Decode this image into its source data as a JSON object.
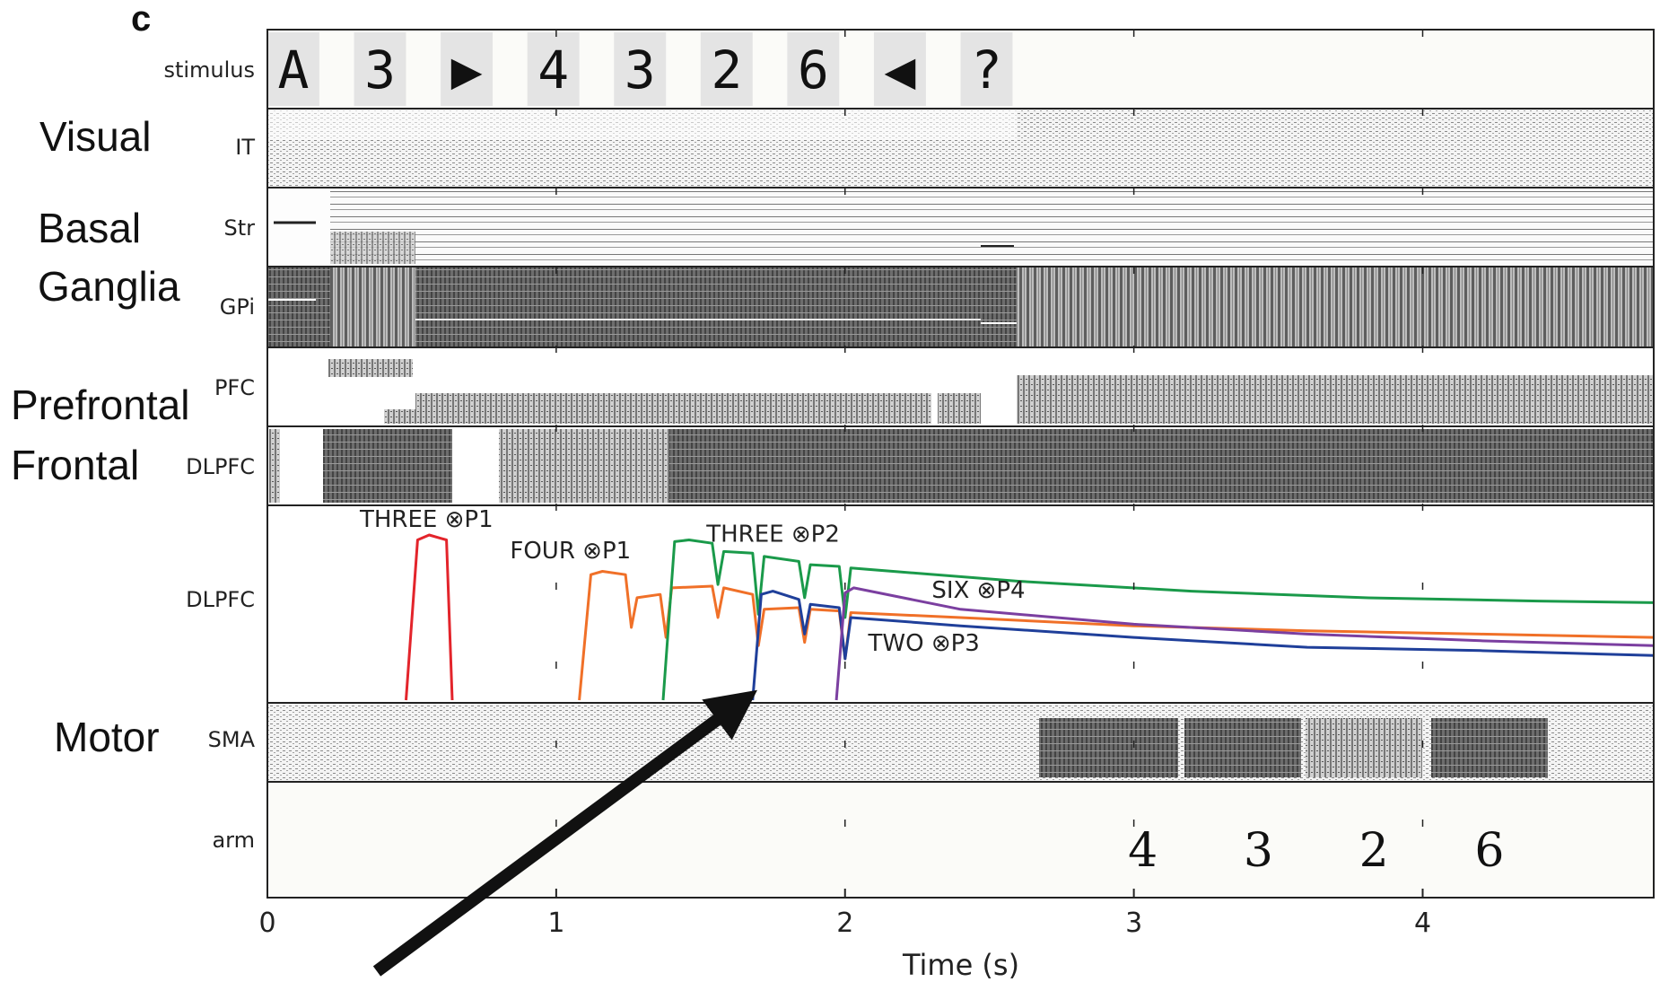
{
  "panel_letter": "c",
  "region_labels": [
    "Visual",
    "Basal",
    "Ganglia",
    "Prefrontal",
    "Frontal",
    "Motor"
  ],
  "row_labels": [
    "stimulus",
    "IT",
    "Str",
    "GPi",
    "PFC",
    "DLPFC",
    "DLPFC",
    "SMA",
    "arm"
  ],
  "stimulus_sequence": [
    {
      "symbol": "A",
      "onset_s": 0.0
    },
    {
      "symbol": "3",
      "onset_s": 0.3
    },
    {
      "symbol": "▶",
      "onset_s": 0.6
    },
    {
      "symbol": "4",
      "onset_s": 0.9
    },
    {
      "symbol": "3",
      "onset_s": 1.2
    },
    {
      "symbol": "2",
      "onset_s": 1.5
    },
    {
      "symbol": "6",
      "onset_s": 1.8
    },
    {
      "symbol": "◀",
      "onset_s": 2.1
    },
    {
      "symbol": "?",
      "onset_s": 2.4
    }
  ],
  "arm_output": [
    {
      "digit": "4",
      "time_s": 3.0
    },
    {
      "digit": "3",
      "time_s": 3.4
    },
    {
      "digit": "2",
      "time_s": 3.8
    },
    {
      "digit": "6",
      "time_s": 4.2
    }
  ],
  "chart_data": {
    "type": "line",
    "xlabel": "Time (s)",
    "xlim": [
      0,
      4.8
    ],
    "xticks": [
      0,
      1,
      2,
      3,
      4
    ],
    "series": [
      {
        "name": "THREE ⊗P1",
        "color": "#e3242b",
        "x": [
          0.48,
          0.52,
          0.56,
          0.6,
          0.62,
          0.64
        ],
        "y": [
          0.0,
          0.97,
          1.0,
          0.98,
          0.97,
          0.0
        ]
      },
      {
        "name": "FOUR ⊗P1",
        "color": "#f07028",
        "x": [
          1.08,
          1.12,
          1.16,
          1.24,
          1.26,
          1.28,
          1.36,
          1.38,
          1.4,
          1.54,
          1.56,
          1.58,
          1.68,
          1.7,
          1.72,
          1.84,
          1.86,
          1.88,
          1.98,
          2.0,
          2.02,
          2.4,
          3.0,
          3.6,
          4.2,
          4.8
        ],
        "y": [
          0.0,
          0.76,
          0.78,
          0.76,
          0.44,
          0.62,
          0.64,
          0.38,
          0.68,
          0.69,
          0.5,
          0.68,
          0.64,
          0.33,
          0.55,
          0.56,
          0.35,
          0.55,
          0.54,
          0.25,
          0.53,
          0.5,
          0.45,
          0.42,
          0.4,
          0.38
        ]
      },
      {
        "name": "THREE ⊗P2",
        "color": "#1a9a4a",
        "x": [
          1.37,
          1.41,
          1.46,
          1.54,
          1.56,
          1.58,
          1.68,
          1.7,
          1.72,
          1.84,
          1.86,
          1.88,
          1.98,
          2.0,
          2.02,
          2.6,
          3.2,
          3.8,
          4.4,
          4.8
        ],
        "y": [
          0.0,
          0.96,
          0.97,
          0.95,
          0.7,
          0.9,
          0.89,
          0.52,
          0.87,
          0.84,
          0.62,
          0.82,
          0.81,
          0.5,
          0.8,
          0.72,
          0.66,
          0.62,
          0.6,
          0.59
        ]
      },
      {
        "name": "TWO ⊗P3",
        "color": "#1f3f9a",
        "x": [
          1.68,
          1.71,
          1.75,
          1.84,
          1.86,
          1.88,
          1.98,
          2.0,
          2.02,
          2.4,
          3.0,
          3.6,
          4.2,
          4.8
        ],
        "y": [
          0.0,
          0.64,
          0.66,
          0.61,
          0.4,
          0.58,
          0.56,
          0.25,
          0.5,
          0.45,
          0.38,
          0.32,
          0.3,
          0.27
        ]
      },
      {
        "name": "SIX ⊗P4",
        "color": "#7b3fa0",
        "x": [
          1.97,
          2.0,
          2.03,
          2.4,
          3.0,
          3.6,
          4.2,
          4.8
        ],
        "y": [
          0.0,
          0.65,
          0.68,
          0.55,
          0.46,
          0.4,
          0.36,
          0.33
        ]
      }
    ],
    "annotations": [
      {
        "text": "THREE ⊗P1",
        "x": 0.32,
        "y": 1.05
      },
      {
        "text": "FOUR ⊗P1",
        "x": 0.84,
        "y": 0.86
      },
      {
        "text": "THREE ⊗P2",
        "x": 1.52,
        "y": 0.96
      },
      {
        "text": "SIX ⊗P4",
        "x": 2.3,
        "y": 0.62
      },
      {
        "text": "TWO ⊗P3",
        "x": 2.08,
        "y": 0.3
      }
    ]
  }
}
